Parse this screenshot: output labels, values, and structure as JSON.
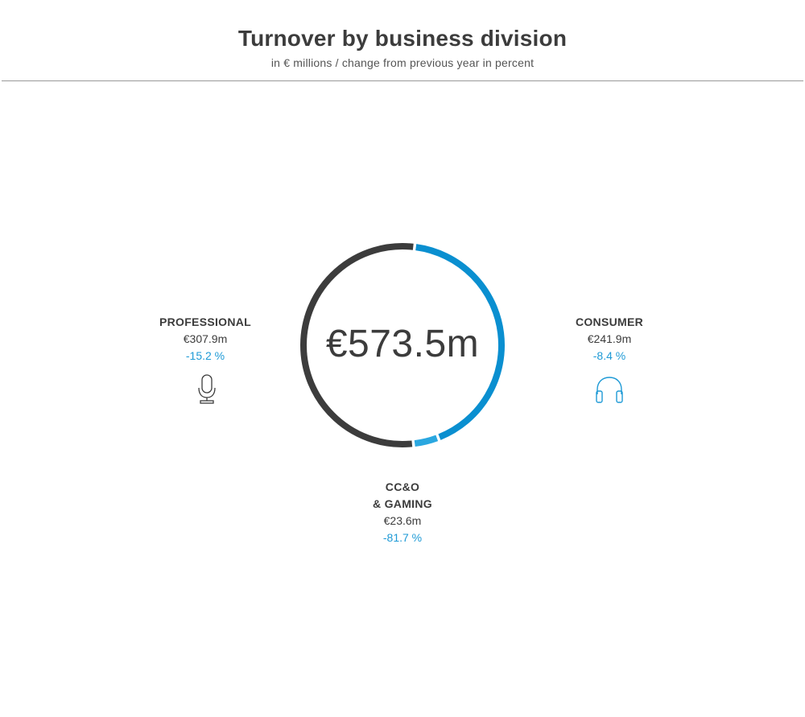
{
  "header": {
    "title": "Turnover by business division",
    "subtitle": "in € millions / change from previous year in percent"
  },
  "chart_data": {
    "type": "pie",
    "total_label": "€573.5m",
    "total": 573.5,
    "segments": [
      {
        "name": "PROFESSIONAL",
        "value": 307.9,
        "value_label": "€307.9m",
        "change": "-15.2 %",
        "color": "#3c3c3c",
        "icon": "microphone-icon"
      },
      {
        "name": "CONSUMER",
        "value": 241.9,
        "value_label": "€241.9m",
        "change": "-8.4 %",
        "color": "#0a8fd0",
        "icon": "headphones-icon"
      },
      {
        "name_line1": "CC&O",
        "name_line2": "& GAMING",
        "value": 23.6,
        "value_label": "€23.6m",
        "change": "-81.7 %",
        "color": "#2aa7e0"
      }
    ]
  },
  "colors": {
    "accent": "#1e9ad6",
    "dark": "#3c3c3c",
    "rule": "#9a9a9a"
  }
}
